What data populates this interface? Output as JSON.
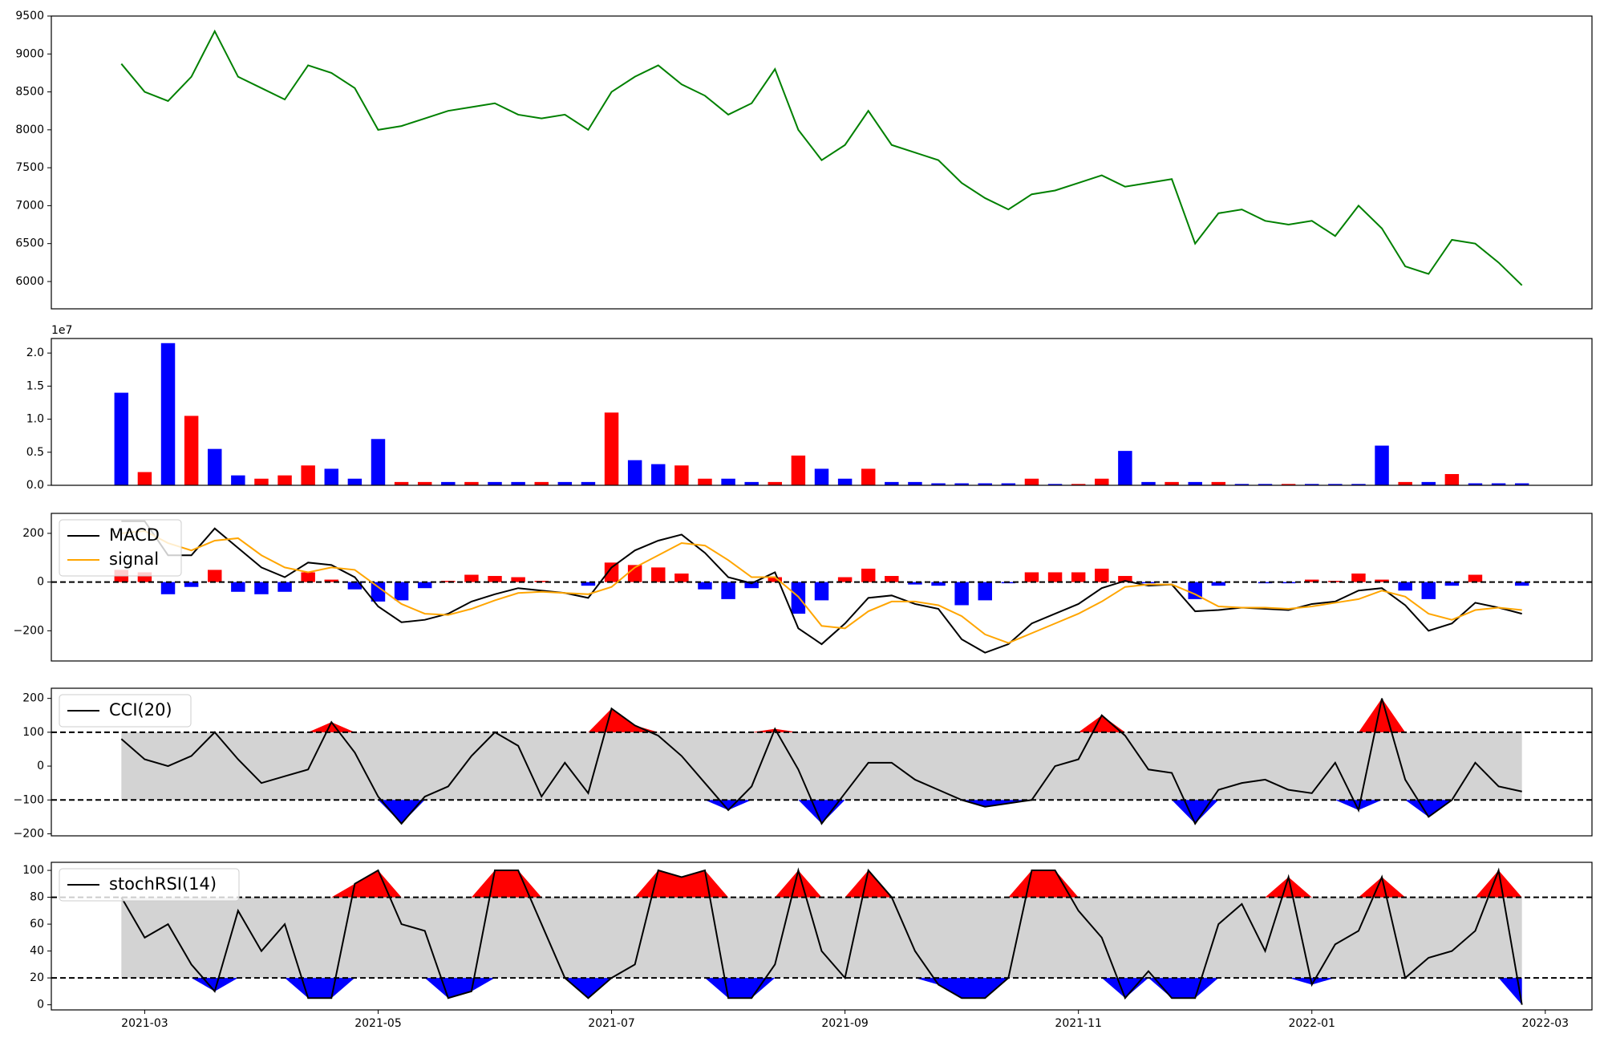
{
  "chart_data": [
    {
      "type": "line",
      "xlim": [
        -0.8,
        12.4
      ],
      "ylim": [
        5640,
        9500
      ],
      "yticks": [
        6000,
        6500,
        7000,
        7500,
        8000,
        8500,
        9000,
        9500
      ],
      "x": [
        -0.2,
        0,
        0.2,
        0.4,
        0.6,
        0.8,
        1,
        1.2,
        1.4,
        1.6,
        1.8,
        2,
        2.2,
        2.4,
        2.6,
        2.8,
        3,
        3.2,
        3.4,
        3.6,
        3.8,
        4,
        4.2,
        4.4,
        4.6,
        4.8,
        5,
        5.2,
        5.4,
        5.6,
        5.8,
        6,
        6.2,
        6.4,
        6.6,
        6.8,
        7,
        7.2,
        7.4,
        7.6,
        7.8,
        8,
        8.2,
        8.4,
        8.6,
        8.8,
        9,
        9.2,
        9.4,
        9.6,
        9.8,
        10,
        10.2,
        10.4,
        10.6,
        10.8,
        11,
        11.2,
        11.4,
        11.6,
        11.8
      ],
      "series": [
        {
          "color": "green",
          "values": [
            8870,
            8500,
            8380,
            8700,
            9300,
            8700,
            8550,
            8400,
            8850,
            8750,
            8550,
            8000,
            8050,
            8150,
            8250,
            8300,
            8350,
            8200,
            8150,
            8200,
            8000,
            8500,
            8700,
            8850,
            8600,
            8450,
            8200,
            8350,
            8800,
            8000,
            7600,
            7800,
            8250,
            7800,
            7700,
            7600,
            7300,
            7100,
            6950,
            7150,
            7200,
            7300,
            7400,
            7250,
            7300,
            7350,
            6500,
            6900,
            6950,
            6800,
            6750,
            6800,
            6600,
            7000,
            6700,
            6200,
            6100,
            6550,
            6500,
            6250,
            5950
          ]
        }
      ]
    },
    {
      "type": "bar",
      "xlim": [
        -0.8,
        12.4
      ],
      "ylim": [
        0,
        2.22
      ],
      "y_offset_label": "1e7",
      "yticks": [
        {
          "value": 0,
          "label": "0.0"
        },
        {
          "value": 0.5,
          "label": "0.5"
        },
        {
          "value": 1,
          "label": "1.0"
        },
        {
          "value": 1.5,
          "label": "1.5"
        },
        {
          "value": 2,
          "label": "2.0"
        }
      ],
      "x": [
        -0.2,
        0,
        0.2,
        0.4,
        0.6,
        0.8,
        1,
        1.2,
        1.4,
        1.6,
        1.8,
        2,
        2.2,
        2.4,
        2.6,
        2.8,
        3,
        3.2,
        3.4,
        3.6,
        3.8,
        4,
        4.2,
        4.4,
        4.6,
        4.8,
        5,
        5.2,
        5.4,
        5.6,
        5.8,
        6,
        6.2,
        6.4,
        6.6,
        6.8,
        7,
        7.2,
        7.4,
        7.6,
        7.8,
        8,
        8.2,
        8.4,
        8.6,
        8.8,
        9,
        9.2,
        9.4,
        9.6,
        9.8,
        10,
        10.2,
        10.4,
        10.6,
        10.8,
        11,
        11.2,
        11.4,
        11.6,
        11.8
      ],
      "values": [
        1.4,
        0.2,
        2.15,
        1.05,
        0.55,
        0.15,
        0.1,
        0.15,
        0.3,
        0.25,
        0.1,
        0.7,
        0.05,
        0.05,
        0.05,
        0.05,
        0.05,
        0.05,
        0.05,
        0.05,
        0.05,
        1.1,
        0.38,
        0.32,
        0.3,
        0.1,
        0.1,
        0.05,
        0.05,
        0.45,
        0.25,
        0.1,
        0.25,
        0.05,
        0.05,
        0.03,
        0.03,
        0.03,
        0.03,
        0.1,
        0.02,
        0.02,
        0.1,
        0.52,
        0.05,
        0.05,
        0.05,
        0.05,
        0.02,
        0.02,
        0.02,
        0.02,
        0.02,
        0.02,
        0.6,
        0.05,
        0.05,
        0.17,
        0.03,
        0.03,
        0.03
      ],
      "colors": [
        "blue",
        "red",
        "blue",
        "red",
        "blue",
        "blue",
        "red",
        "red",
        "red",
        "blue",
        "blue",
        "blue",
        "red",
        "red",
        "blue",
        "red",
        "blue",
        "blue",
        "red",
        "blue",
        "blue",
        "red",
        "blue",
        "blue",
        "red",
        "red",
        "blue",
        "blue",
        "red",
        "red",
        "blue",
        "blue",
        "red",
        "blue",
        "blue",
        "blue",
        "blue",
        "blue",
        "blue",
        "red",
        "blue",
        "red",
        "red",
        "blue",
        "blue",
        "red",
        "blue",
        "red",
        "blue",
        "blue",
        "red",
        "blue",
        "blue",
        "blue",
        "blue",
        "red",
        "blue",
        "red",
        "blue",
        "blue",
        "blue"
      ]
    },
    {
      "type": "line",
      "xlim": [
        -0.8,
        12.4
      ],
      "ylim": [
        -324,
        282
      ],
      "legend": "upper left",
      "hlines": [
        0
      ],
      "yticks": [
        {
          "value": -200,
          "label": "−200"
        },
        0,
        200
      ],
      "x": [
        -0.2,
        0,
        0.2,
        0.4,
        0.6,
        0.8,
        1,
        1.2,
        1.4,
        1.6,
        1.8,
        2,
        2.2,
        2.4,
        2.6,
        2.8,
        3,
        3.2,
        3.4,
        3.6,
        3.8,
        4,
        4.2,
        4.4,
        4.6,
        4.8,
        5,
        5.2,
        5.4,
        5.6,
        5.8,
        6,
        6.2,
        6.4,
        6.6,
        6.8,
        7,
        7.2,
        7.4,
        7.6,
        7.8,
        8,
        8.2,
        8.4,
        8.6,
        8.8,
        9,
        9.2,
        9.4,
        9.6,
        9.8,
        10,
        10.2,
        10.4,
        10.6,
        10.8,
        11,
        11.2,
        11.4,
        11.6,
        11.8
      ],
      "histogram": {
        "pos_color": "red",
        "neg_color": "blue",
        "values": [
          50,
          40,
          -50,
          -20,
          50,
          -40,
          -50,
          -40,
          40,
          10,
          -30,
          -80,
          -75,
          -25,
          5,
          30,
          25,
          20,
          5,
          0,
          -15,
          80,
          70,
          60,
          35,
          -30,
          -70,
          -25,
          20,
          -130,
          -75,
          20,
          55,
          25,
          -10,
          -15,
          -95,
          -75,
          -5,
          40,
          40,
          40,
          55,
          25,
          -5,
          0,
          -70,
          -15,
          0,
          -5,
          -5,
          10,
          5,
          35,
          10,
          -35,
          -70,
          -15,
          30,
          0,
          -15
        ]
      },
      "series": [
        {
          "name": "MACD",
          "color": "black",
          "values": [
            250,
            250,
            110,
            110,
            220,
            140,
            60,
            20,
            80,
            70,
            20,
            -100,
            -165,
            -155,
            -130,
            -80,
            -50,
            -25,
            -35,
            -45,
            -65,
            60,
            130,
            170,
            195,
            120,
            20,
            -5,
            40,
            -190,
            -255,
            -170,
            -65,
            -55,
            -90,
            -110,
            -235,
            -290,
            -255,
            -170,
            -130,
            -90,
            -25,
            5,
            -15,
            -10,
            -120,
            -115,
            -105,
            -110,
            -115,
            -90,
            -80,
            -35,
            -25,
            -95,
            -200,
            -170,
            -85,
            -105,
            -130
          ]
        },
        {
          "name": "signal",
          "color": "orange",
          "values": [
            200,
            210,
            160,
            130,
            170,
            180,
            110,
            60,
            40,
            60,
            50,
            -20,
            -90,
            -130,
            -135,
            -110,
            -75,
            -45,
            -40,
            -45,
            -50,
            -20,
            60,
            110,
            160,
            150,
            90,
            20,
            20,
            -60,
            -180,
            -190,
            -120,
            -80,
            -80,
            -95,
            -140,
            -215,
            -250,
            -210,
            -170,
            -130,
            -80,
            -20,
            -10,
            -10,
            -50,
            -100,
            -105,
            -105,
            -110,
            -100,
            -85,
            -70,
            -35,
            -60,
            -130,
            -155,
            -115,
            -105,
            -115
          ]
        }
      ]
    },
    {
      "type": "line",
      "xlim": [
        -0.8,
        12.4
      ],
      "ylim": [
        -206,
        230
      ],
      "legend": "upper left",
      "hlines": [
        100,
        -100
      ],
      "bands": {
        "lower": -100,
        "upper": 100,
        "fill": "#d3d3d3",
        "above_color": "red",
        "below_color": "blue"
      },
      "yticks": [
        {
          "value": -200,
          "label": "−200"
        },
        {
          "value": -100,
          "label": "−100"
        },
        0,
        100,
        200
      ],
      "x": [
        -0.2,
        0,
        0.2,
        0.4,
        0.6,
        0.8,
        1,
        1.2,
        1.4,
        1.6,
        1.8,
        2,
        2.2,
        2.4,
        2.6,
        2.8,
        3,
        3.2,
        3.4,
        3.6,
        3.8,
        4,
        4.2,
        4.4,
        4.6,
        4.8,
        5,
        5.2,
        5.4,
        5.6,
        5.8,
        6,
        6.2,
        6.4,
        6.6,
        6.8,
        7,
        7.2,
        7.4,
        7.6,
        7.8,
        8,
        8.2,
        8.4,
        8.6,
        8.8,
        9,
        9.2,
        9.4,
        9.6,
        9.8,
        10,
        10.2,
        10.4,
        10.6,
        10.8,
        11,
        11.2,
        11.4,
        11.6,
        11.8
      ],
      "series": [
        {
          "name": "CCI(20)",
          "color": "black",
          "values": [
            80,
            20,
            0,
            30,
            100,
            20,
            -50,
            -30,
            -10,
            130,
            40,
            -90,
            -170,
            -90,
            -60,
            30,
            100,
            60,
            -90,
            10,
            -80,
            170,
            120,
            90,
            30,
            -50,
            -130,
            -60,
            110,
            -10,
            -170,
            -80,
            10,
            10,
            -40,
            -70,
            -100,
            -120,
            -110,
            -100,
            0,
            20,
            150,
            90,
            -10,
            -20,
            -170,
            -70,
            -50,
            -40,
            -70,
            -80,
            10,
            -130,
            200,
            -40,
            -150,
            -100,
            10,
            -60,
            -75
          ]
        }
      ]
    },
    {
      "type": "line",
      "xlim": [
        -0.8,
        12.4
      ],
      "ylim": [
        -3.8,
        106
      ],
      "legend": "upper left",
      "hlines": [
        80,
        20
      ],
      "bands": {
        "lower": 20,
        "upper": 80,
        "fill": "#d3d3d3",
        "above_color": "red",
        "below_color": "blue"
      },
      "yticks": [
        0,
        20,
        40,
        60,
        80,
        100
      ],
      "xticks": [
        {
          "value": 0,
          "label": "2021-03"
        },
        {
          "value": 2,
          "label": "2021-05"
        },
        {
          "value": 4,
          "label": "2021-07"
        },
        {
          "value": 6,
          "label": "2021-09"
        },
        {
          "value": 8,
          "label": "2021-11"
        },
        {
          "value": 10,
          "label": "2022-01"
        },
        {
          "value": 12,
          "label": "2022-03"
        }
      ],
      "x": [
        -0.2,
        0,
        0.2,
        0.4,
        0.6,
        0.8,
        1,
        1.2,
        1.4,
        1.6,
        1.8,
        2,
        2.2,
        2.4,
        2.6,
        2.8,
        3,
        3.2,
        3.4,
        3.6,
        3.8,
        4,
        4.2,
        4.4,
        4.6,
        4.8,
        5,
        5.2,
        5.4,
        5.6,
        5.8,
        6,
        6.2,
        6.4,
        6.6,
        6.8,
        7,
        7.2,
        7.4,
        7.6,
        7.8,
        8,
        8.2,
        8.4,
        8.6,
        8.8,
        9,
        9.2,
        9.4,
        9.6,
        9.8,
        10,
        10.2,
        10.4,
        10.6,
        10.8,
        11,
        11.2,
        11.4,
        11.6,
        11.8
      ],
      "series": [
        {
          "name": "stochRSI(14)",
          "color": "black",
          "values": [
            80,
            50,
            60,
            30,
            10,
            70,
            40,
            60,
            5,
            5,
            90,
            100,
            60,
            55,
            5,
            10,
            100,
            100,
            60,
            20,
            5,
            20,
            30,
            100,
            95,
            100,
            5,
            5,
            30,
            100,
            40,
            20,
            100,
            80,
            40,
            15,
            5,
            5,
            20,
            100,
            100,
            70,
            50,
            5,
            25,
            5,
            5,
            60,
            75,
            40,
            95,
            15,
            45,
            55,
            95,
            20,
            35,
            40,
            55,
            100,
            0
          ]
        }
      ]
    }
  ]
}
